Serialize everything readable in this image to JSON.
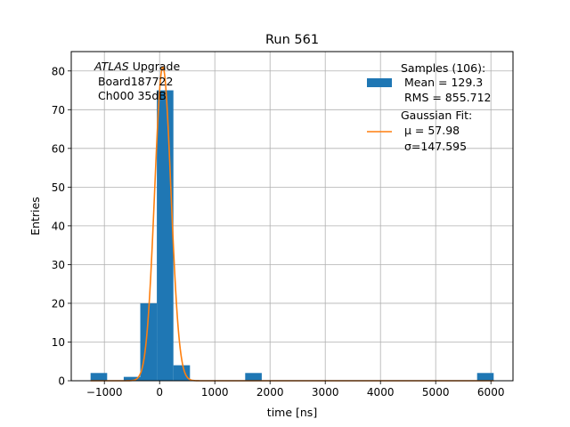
{
  "chart_data": {
    "type": "bar",
    "title": "Run 561",
    "xlabel": "time [ns]",
    "ylabel": "Entries",
    "xlim": [
      -1600,
      6400
    ],
    "ylim": [
      0,
      85
    ],
    "xticks": [
      -1000,
      0,
      1000,
      2000,
      3000,
      4000,
      5000,
      6000
    ],
    "yticks": [
      0,
      10,
      20,
      30,
      40,
      50,
      60,
      70,
      80
    ],
    "grid": true,
    "annotation": {
      "line1_italic": "ATLAS",
      "line1_rest": " Upgrade",
      "line2": " Board187722",
      "line3": " Ch000 35dB"
    },
    "histogram": {
      "name": "Samples (106):",
      "stats": [
        " Mean = 129.3",
        " RMS = 855.712"
      ],
      "color": "#1f77b4",
      "bins": [
        {
          "x0": -1250,
          "x1": -950,
          "count": 2
        },
        {
          "x0": -650,
          "x1": -350,
          "count": 1
        },
        {
          "x0": -350,
          "x1": -50,
          "count": 20
        },
        {
          "x0": -50,
          "x1": 250,
          "count": 75
        },
        {
          "x0": 250,
          "x1": 550,
          "count": 4
        },
        {
          "x0": 1550,
          "x1": 1850,
          "count": 2
        },
        {
          "x0": 5750,
          "x1": 6050,
          "count": 2
        }
      ]
    },
    "fit": {
      "name": "Gaussian Fit:",
      "mu_label": " μ = 57.98",
      "sigma_label": " σ=147.595",
      "color": "#ff7f0e",
      "amplitude": 81,
      "mu": 57.98,
      "sigma": 147.595,
      "x_range": [
        -1250,
        6050
      ]
    },
    "legend_position": "top-right"
  }
}
